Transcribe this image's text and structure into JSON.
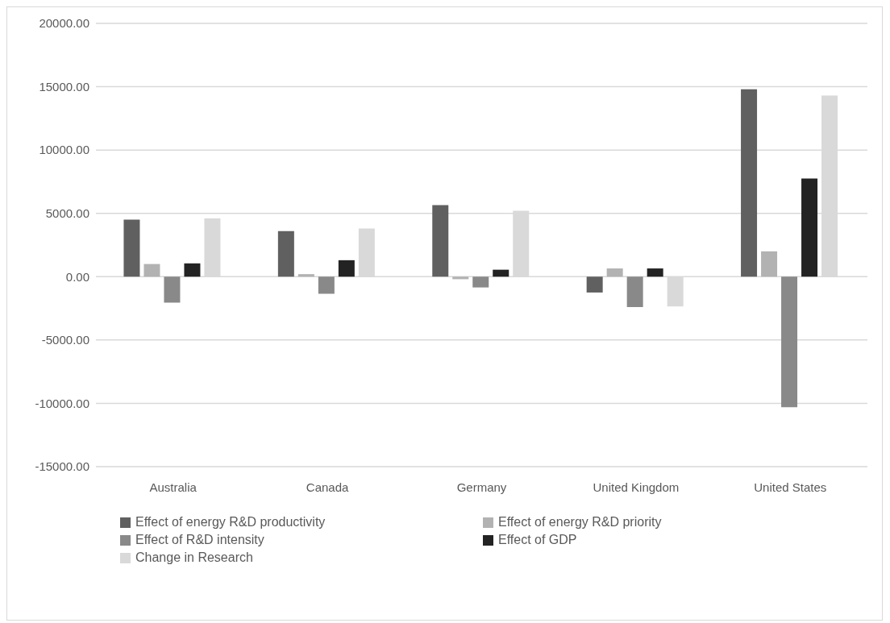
{
  "chart_data": {
    "type": "bar",
    "categories": [
      "Australia",
      "Canada",
      "Germany",
      "United Kingdom",
      "United States"
    ],
    "series": [
      {
        "name": "Effect of energy R&D productivity",
        "color": "#606060",
        "values": [
          4500,
          3600,
          5650,
          -1250,
          14800
        ]
      },
      {
        "name": "Effect of energy R&D priority",
        "color": "#b2b2b2",
        "values": [
          1000,
          200,
          -200,
          650,
          2000
        ]
      },
      {
        "name": "Effect of R&D intensity",
        "color": "#898989",
        "values": [
          -2050,
          -1350,
          -850,
          -2400,
          -10300
        ]
      },
      {
        "name": "Effect of GDP",
        "color": "#232323",
        "values": [
          1050,
          1300,
          550,
          650,
          7750
        ]
      },
      {
        "name": "Change in Research",
        "color": "#d9d9d9",
        "values": [
          4600,
          3800,
          5200,
          -2350,
          14300
        ]
      }
    ],
    "ylim": [
      -15000,
      20000
    ],
    "yticks": [
      {
        "value": -15000,
        "label": "-15000.00"
      },
      {
        "value": -10000,
        "label": "-10000.00"
      },
      {
        "value": -5000,
        "label": "-5000.00"
      },
      {
        "value": 0,
        "label": "0.00"
      },
      {
        "value": 5000,
        "label": "5000.00"
      },
      {
        "value": 10000,
        "label": "10000.00"
      },
      {
        "value": 15000,
        "label": "15000.00"
      },
      {
        "value": 20000,
        "label": "20000.00"
      }
    ],
    "grid": "y",
    "legend": "bottom"
  }
}
